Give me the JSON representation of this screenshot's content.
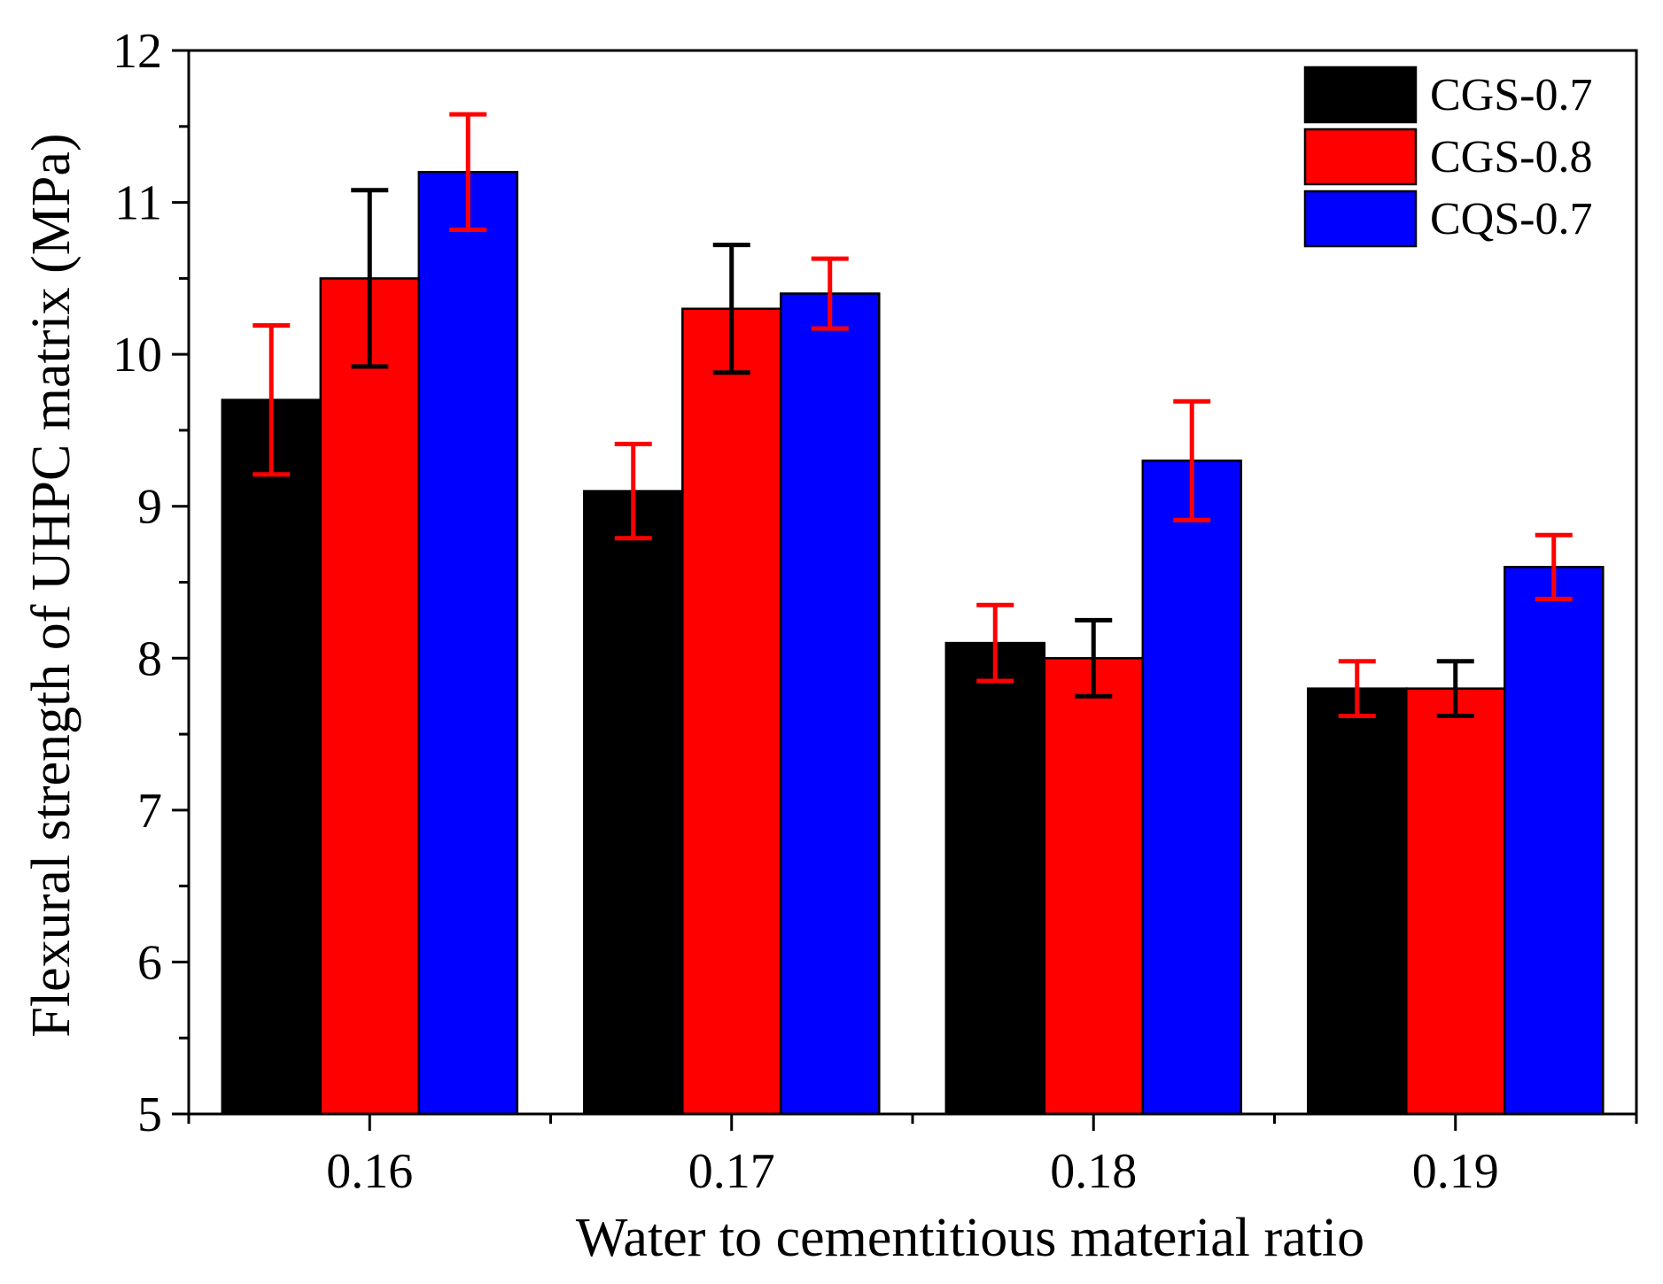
{
  "chart_data": {
    "type": "bar",
    "title": "",
    "xlabel": "Water to cementitious material ratio",
    "ylabel": "Flexural strength of UHPC matrix (MPa)",
    "categories": [
      "0.16",
      "0.17",
      "0.18",
      "0.19"
    ],
    "ylim": [
      5,
      12
    ],
    "yticks": [
      5,
      6,
      7,
      8,
      9,
      10,
      11,
      12
    ],
    "ytick_labels": [
      "5",
      "6",
      "7",
      "8",
      "9",
      "10",
      "11",
      "12"
    ],
    "grid": false,
    "legend_position": "top-right",
    "series": [
      {
        "name": "CGS-0.7",
        "color": "#000000",
        "errorbar_color": "#ff0000",
        "values": [
          9.7,
          9.1,
          8.1,
          7.8
        ],
        "errors": [
          0.49,
          0.31,
          0.25,
          0.18
        ]
      },
      {
        "name": "CGS-0.8",
        "color": "#ff0000",
        "errorbar_color": "#000000",
        "values": [
          10.5,
          10.3,
          8.0,
          7.8
        ],
        "errors": [
          0.58,
          0.42,
          0.25,
          0.18
        ]
      },
      {
        "name": "CQS-0.7",
        "color": "#0000ff",
        "errorbar_color": "#ff0000",
        "values": [
          11.2,
          10.4,
          9.3,
          8.6
        ],
        "errors": [
          0.38,
          0.23,
          0.39,
          0.21
        ]
      }
    ]
  }
}
